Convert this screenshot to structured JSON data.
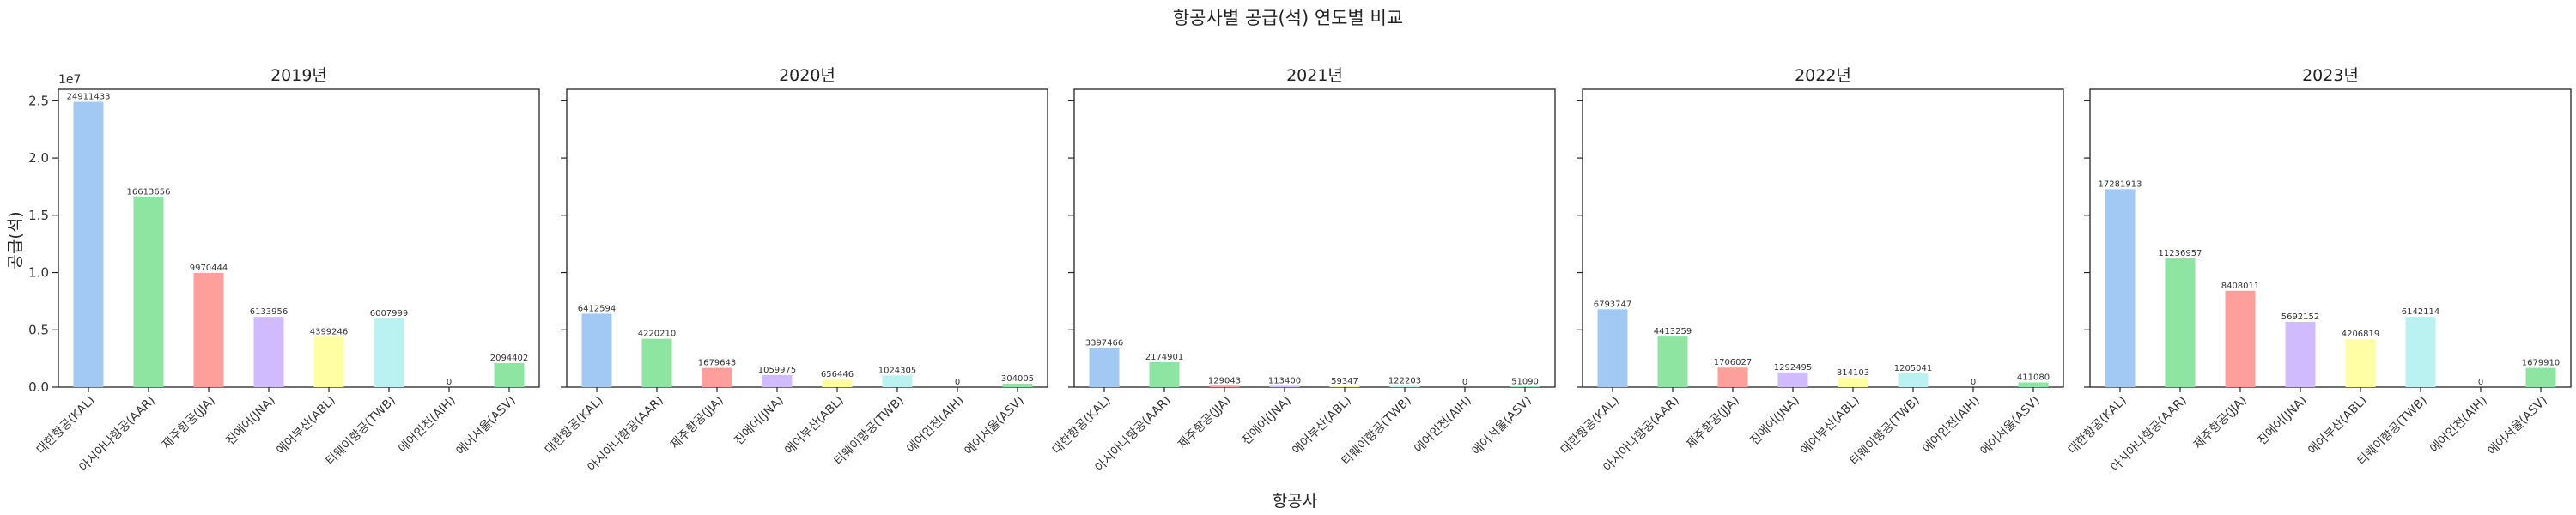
{
  "figure": {
    "title": "항공사별 공급(석) 연도별 비교",
    "xlabel": "항공사",
    "ylabel": "공급(석)",
    "y_offset_label": "1e7"
  },
  "chart_data": [
    {
      "type": "bar",
      "title": "2019년",
      "categories": [
        "대한항공(KAL)",
        "아시아나항공(AAR)",
        "제주항공(JJA)",
        "진에어(JNA)",
        "에어부산(ABL)",
        "티웨이항공(TWB)",
        "에어인천(AIH)",
        "에어서울(ASV)"
      ],
      "values": [
        24911433,
        16613656,
        9970444,
        6133956,
        4399246,
        6007999,
        0,
        2094402
      ],
      "ylim": [
        0,
        26000000
      ],
      "yticks": [
        "0.0",
        "0.5",
        "1.0",
        "1.5",
        "2.0",
        "2.5"
      ]
    },
    {
      "type": "bar",
      "title": "2020년",
      "categories": [
        "대한항공(KAL)",
        "아시아나항공(AAR)",
        "제주항공(JJA)",
        "진에어(JNA)",
        "에어부산(ABL)",
        "티웨이항공(TWB)",
        "에어인천(AIH)",
        "에어서울(ASV)"
      ],
      "values": [
        6412594,
        4220210,
        1679643,
        1059975,
        656446,
        1024305,
        0,
        304005
      ],
      "ylim": [
        0,
        26000000
      ]
    },
    {
      "type": "bar",
      "title": "2021년",
      "categories": [
        "대한항공(KAL)",
        "아시아나항공(AAR)",
        "제주항공(JJA)",
        "진에어(JNA)",
        "에어부산(ABL)",
        "티웨이항공(TWB)",
        "에어인천(AIH)",
        "에어서울(ASV)"
      ],
      "values": [
        3397466,
        2174901,
        129043,
        113400,
        59347,
        122203,
        0,
        51090
      ],
      "ylim": [
        0,
        26000000
      ]
    },
    {
      "type": "bar",
      "title": "2022년",
      "categories": [
        "대한항공(KAL)",
        "아시아나항공(AAR)",
        "제주항공(JJA)",
        "진에어(JNA)",
        "에어부산(ABL)",
        "티웨이항공(TWB)",
        "에어인천(AIH)",
        "에어서울(ASV)"
      ],
      "values": [
        6793747,
        4413259,
        1706027,
        1292495,
        814103,
        1205041,
        0,
        411080
      ],
      "ylim": [
        0,
        26000000
      ]
    },
    {
      "type": "bar",
      "title": "2023년",
      "categories": [
        "대한항공(KAL)",
        "아시아나항공(AAR)",
        "제주항공(JJA)",
        "진에어(JNA)",
        "에어부산(ABL)",
        "티웨이항공(TWB)",
        "에어인천(AIH)",
        "에어서울(ASV)"
      ],
      "values": [
        17281913,
        11236957,
        8408011,
        5692152,
        4206819,
        6142114,
        0,
        1679910
      ],
      "ylim": [
        0,
        26000000
      ]
    }
  ],
  "colors": [
    "#a1c9f4",
    "#8de5a1",
    "#ff9f9b",
    "#d0bbff",
    "#fffea3",
    "#b9f2f0",
    "#fab0e4",
    "#8de5a1"
  ]
}
